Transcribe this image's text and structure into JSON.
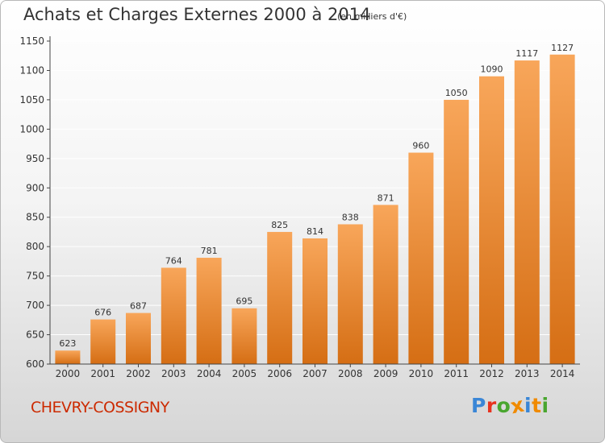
{
  "header": {
    "title": "Achats et Charges Externes 2000 à 2014",
    "unit": "(en milliers d'€)"
  },
  "footer": {
    "commune": "CHEVRY-COSSIGNY",
    "logo_text": "Proxiti"
  },
  "colors": {
    "bar_light": "#f8a65a",
    "bar_dark": "#d56e14",
    "axis": "#444444",
    "grid": "#ffffff",
    "commune_text": "#cc2a00",
    "logo": [
      "#3a86d6",
      "#e8321e",
      "#49a62f",
      "#f08a00",
      "#3a86d6",
      "#f08a00",
      "#49a62f"
    ]
  },
  "chart_data": {
    "type": "bar",
    "categories": [
      "2000",
      "2001",
      "2002",
      "2003",
      "2004",
      "2005",
      "2006",
      "2007",
      "2008",
      "2009",
      "2010",
      "2011",
      "2012",
      "2013",
      "2014"
    ],
    "values": [
      623,
      676,
      687,
      764,
      781,
      695,
      825,
      814,
      838,
      871,
      960,
      1050,
      1090,
      1117,
      1127
    ],
    "title": "Achats et Charges Externes 2000 à 2014",
    "xlabel": "",
    "ylabel": "",
    "ylim": [
      600,
      1150
    ],
    "yticks": [
      600,
      650,
      700,
      750,
      800,
      850,
      900,
      950,
      1000,
      1050,
      1100,
      1150
    ],
    "grid": true
  }
}
